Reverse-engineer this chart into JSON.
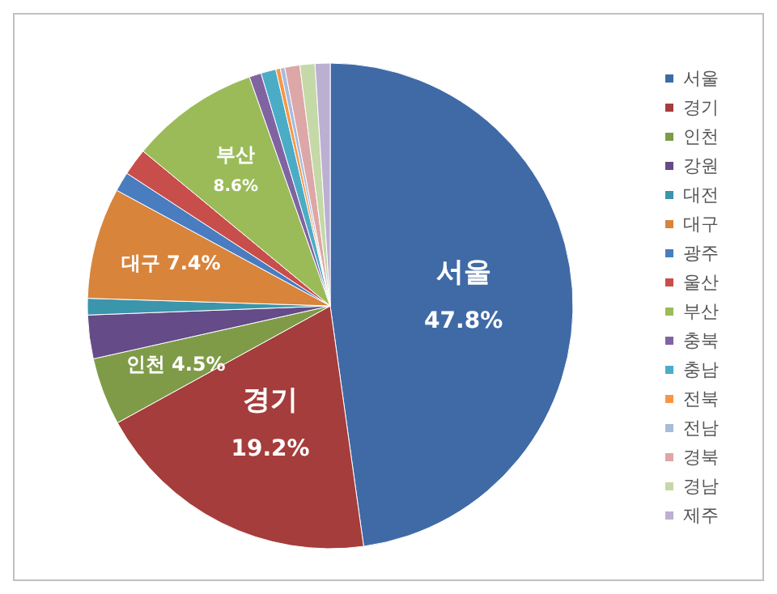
{
  "chart_data": {
    "type": "pie",
    "categories": [
      "서울",
      "경기",
      "인천",
      "강원",
      "대전",
      "대구",
      "광주",
      "울산",
      "부산",
      "충북",
      "충남",
      "전북",
      "전남",
      "경북",
      "경남",
      "제주"
    ],
    "values": [
      47.8,
      19.2,
      4.5,
      2.9,
      1.1,
      7.4,
      1.3,
      1.8,
      8.6,
      0.8,
      1.0,
      0.3,
      0.3,
      1.0,
      1.0,
      1.0
    ],
    "colors": [
      "#3f6aa6",
      "#a43d3b",
      "#7f9b48",
      "#654b87",
      "#3b95ab",
      "#d8843b",
      "#4a7cc0",
      "#c84e4b",
      "#9bbb59",
      "#8064a2",
      "#4bacc6",
      "#f79646",
      "#a7bbdc",
      "#dca7a6",
      "#c5d8a7",
      "#bbafd2"
    ],
    "value_labels": [
      "47.8%",
      "19.2%",
      "4.5%",
      null,
      null,
      "7.4%",
      null,
      null,
      "8.6%",
      null,
      null,
      null,
      null,
      null,
      null,
      null
    ],
    "legend": "right"
  }
}
